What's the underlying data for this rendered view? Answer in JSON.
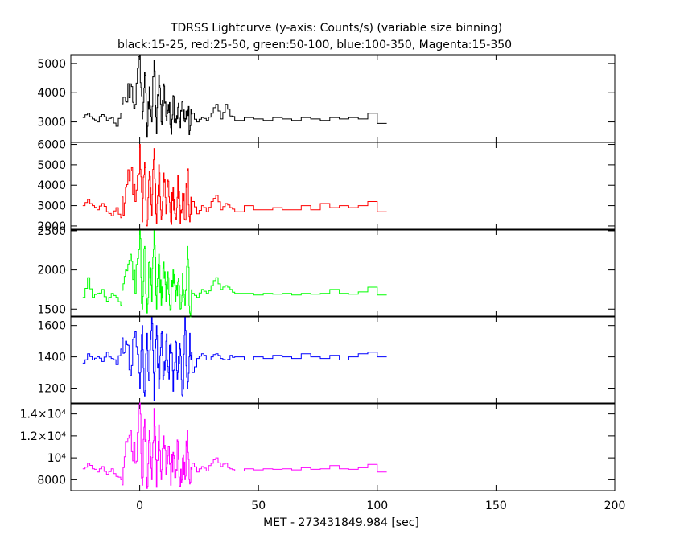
{
  "chart_data": {
    "type": "line",
    "title": "TDRSS Lightcurve (y-axis: Counts/s) (variable size binning)",
    "subtitle": "black:15-25, red:25-50, green:50-100, blue:100-350, Magenta:15-350",
    "xlabel": "MET - 273431849.984 [sec]",
    "xlim": [
      -29,
      200
    ],
    "x_ticks": [
      0,
      50,
      100,
      150,
      200
    ],
    "x_tick_labels": [
      "0",
      "50",
      "100",
      "150",
      "200"
    ],
    "grid": false,
    "panels": [
      {
        "name": "black:15-25",
        "color": "#000000",
        "ylim": [
          2300,
          5300
        ],
        "y_ticks": [
          3000,
          4000,
          5000
        ],
        "y_tick_labels": [
          "3000",
          "4000",
          "5000"
        ],
        "keypoints": [
          [
            -24,
            3150
          ],
          [
            -22,
            3300
          ],
          [
            -20,
            3100
          ],
          [
            -18,
            3000
          ],
          [
            -16,
            3250
          ],
          [
            -14,
            3050
          ],
          [
            -12,
            3150
          ],
          [
            -10,
            2850
          ],
          [
            -8,
            3300
          ],
          [
            -6,
            3700
          ],
          [
            -4,
            4300
          ],
          [
            -2,
            3600
          ],
          [
            0,
            5300
          ],
          [
            1,
            3100
          ],
          [
            2,
            4700
          ],
          [
            3,
            2500
          ],
          [
            4,
            4200
          ],
          [
            5,
            3000
          ],
          [
            6,
            5100
          ],
          [
            7,
            2600
          ],
          [
            8,
            4600
          ],
          [
            9,
            3000
          ],
          [
            10,
            4300
          ],
          [
            11,
            3200
          ],
          [
            12,
            3600
          ],
          [
            13,
            2800
          ],
          [
            14,
            3900
          ],
          [
            15,
            3100
          ],
          [
            16,
            3500
          ],
          [
            17,
            2800
          ],
          [
            18,
            3700
          ],
          [
            19,
            3000
          ],
          [
            20,
            3400
          ],
          [
            21,
            2700
          ],
          [
            22,
            3300
          ],
          [
            24,
            3000
          ],
          [
            26,
            3150
          ],
          [
            28,
            3050
          ],
          [
            30,
            3300
          ],
          [
            32,
            3600
          ],
          [
            34,
            3100
          ],
          [
            36,
            3600
          ],
          [
            38,
            3200
          ],
          [
            40,
            3050
          ],
          [
            44,
            3150
          ],
          [
            48,
            3100
          ],
          [
            52,
            3050
          ],
          [
            56,
            3150
          ],
          [
            60,
            3100
          ],
          [
            64,
            3050
          ],
          [
            68,
            3150
          ],
          [
            72,
            3100
          ],
          [
            76,
            3050
          ],
          [
            80,
            3150
          ],
          [
            84,
            3100
          ],
          [
            88,
            3150
          ],
          [
            92,
            3100
          ],
          [
            96,
            3300
          ],
          [
            100,
            2950
          ],
          [
            104,
            2950
          ]
        ]
      },
      {
        "name": "red:25-50",
        "color": "#ff0000",
        "ylim": [
          1800,
          6100
        ],
        "y_ticks": [
          2000,
          3000,
          4000,
          5000,
          6000
        ],
        "y_tick_labels": [
          "2000",
          "3000",
          "4000",
          "5000",
          "6000"
        ],
        "keypoints": [
          [
            -24,
            3000
          ],
          [
            -22,
            3300
          ],
          [
            -20,
            3000
          ],
          [
            -18,
            2800
          ],
          [
            -16,
            3100
          ],
          [
            -14,
            2700
          ],
          [
            -12,
            2500
          ],
          [
            -10,
            2900
          ],
          [
            -8,
            2400
          ],
          [
            -6,
            3900
          ],
          [
            -4,
            4700
          ],
          [
            -2,
            3200
          ],
          [
            0,
            6000
          ],
          [
            1,
            2200
          ],
          [
            2,
            5100
          ],
          [
            3,
            2000
          ],
          [
            4,
            4700
          ],
          [
            5,
            2500
          ],
          [
            6,
            5800
          ],
          [
            7,
            2100
          ],
          [
            8,
            5000
          ],
          [
            9,
            2300
          ],
          [
            10,
            4600
          ],
          [
            11,
            2600
          ],
          [
            12,
            4200
          ],
          [
            13,
            2200
          ],
          [
            14,
            3900
          ],
          [
            15,
            2400
          ],
          [
            16,
            4500
          ],
          [
            17,
            2100
          ],
          [
            18,
            3600
          ],
          [
            19,
            2300
          ],
          [
            20,
            4700
          ],
          [
            21,
            2200
          ],
          [
            22,
            3200
          ],
          [
            24,
            2600
          ],
          [
            26,
            3000
          ],
          [
            28,
            2700
          ],
          [
            30,
            3200
          ],
          [
            32,
            3500
          ],
          [
            34,
            2800
          ],
          [
            36,
            3100
          ],
          [
            38,
            2900
          ],
          [
            40,
            2700
          ],
          [
            44,
            3000
          ],
          [
            48,
            2800
          ],
          [
            52,
            2800
          ],
          [
            56,
            2900
          ],
          [
            60,
            2800
          ],
          [
            64,
            2800
          ],
          [
            68,
            3000
          ],
          [
            72,
            2800
          ],
          [
            76,
            3100
          ],
          [
            80,
            2900
          ],
          [
            84,
            3000
          ],
          [
            88,
            2900
          ],
          [
            92,
            3000
          ],
          [
            96,
            3200
          ],
          [
            100,
            2700
          ],
          [
            104,
            2700
          ]
        ]
      },
      {
        "name": "green:50-100",
        "color": "#00ff00",
        "ylim": [
          1400,
          2520
        ],
        "y_ticks": [
          1500,
          2000,
          2500
        ],
        "y_tick_labels": [
          "1500",
          "2000",
          "2500"
        ],
        "keypoints": [
          [
            -24,
            1650
          ],
          [
            -22,
            1900
          ],
          [
            -20,
            1650
          ],
          [
            -18,
            1700
          ],
          [
            -16,
            1750
          ],
          [
            -14,
            1600
          ],
          [
            -12,
            1700
          ],
          [
            -10,
            1650
          ],
          [
            -8,
            1550
          ],
          [
            -6,
            2000
          ],
          [
            -4,
            2200
          ],
          [
            -2,
            1700
          ],
          [
            0,
            2500
          ],
          [
            1,
            1500
          ],
          [
            2,
            2300
          ],
          [
            3,
            1450
          ],
          [
            4,
            2100
          ],
          [
            5,
            1600
          ],
          [
            6,
            2500
          ],
          [
            7,
            1500
          ],
          [
            8,
            2200
          ],
          [
            9,
            1550
          ],
          [
            10,
            2100
          ],
          [
            11,
            1600
          ],
          [
            12,
            1900
          ],
          [
            13,
            1500
          ],
          [
            14,
            2000
          ],
          [
            15,
            1600
          ],
          [
            16,
            1850
          ],
          [
            17,
            1500
          ],
          [
            18,
            1950
          ],
          [
            19,
            1550
          ],
          [
            20,
            2300
          ],
          [
            21,
            1450
          ],
          [
            22,
            1700
          ],
          [
            24,
            1650
          ],
          [
            26,
            1750
          ],
          [
            28,
            1700
          ],
          [
            30,
            1800
          ],
          [
            32,
            1900
          ],
          [
            34,
            1750
          ],
          [
            36,
            1800
          ],
          [
            38,
            1750
          ],
          [
            40,
            1700
          ],
          [
            44,
            1700
          ],
          [
            48,
            1680
          ],
          [
            52,
            1700
          ],
          [
            56,
            1690
          ],
          [
            60,
            1700
          ],
          [
            64,
            1680
          ],
          [
            68,
            1700
          ],
          [
            72,
            1690
          ],
          [
            76,
            1700
          ],
          [
            80,
            1750
          ],
          [
            84,
            1700
          ],
          [
            88,
            1690
          ],
          [
            92,
            1720
          ],
          [
            96,
            1780
          ],
          [
            100,
            1680
          ],
          [
            104,
            1680
          ]
        ]
      },
      {
        "name": "blue:100-350",
        "color": "#0000ff",
        "ylim": [
          1100,
          1660
        ],
        "y_ticks": [
          1200,
          1400,
          1600
        ],
        "y_tick_labels": [
          "1200",
          "1400",
          "1600"
        ],
        "keypoints": [
          [
            -24,
            1360
          ],
          [
            -22,
            1420
          ],
          [
            -20,
            1380
          ],
          [
            -18,
            1400
          ],
          [
            -16,
            1370
          ],
          [
            -14,
            1430
          ],
          [
            -12,
            1390
          ],
          [
            -10,
            1350
          ],
          [
            -8,
            1450
          ],
          [
            -6,
            1500
          ],
          [
            -4,
            1280
          ],
          [
            -2,
            1560
          ],
          [
            0,
            1200
          ],
          [
            1,
            1600
          ],
          [
            2,
            1150
          ],
          [
            3,
            1550
          ],
          [
            4,
            1250
          ],
          [
            5,
            1650
          ],
          [
            6,
            1120
          ],
          [
            7,
            1600
          ],
          [
            8,
            1200
          ],
          [
            9,
            1550
          ],
          [
            10,
            1280
          ],
          [
            11,
            1500
          ],
          [
            12,
            1300
          ],
          [
            13,
            1480
          ],
          [
            14,
            1180
          ],
          [
            15,
            1500
          ],
          [
            16,
            1300
          ],
          [
            17,
            1450
          ],
          [
            18,
            1150
          ],
          [
            19,
            1650
          ],
          [
            20,
            1200
          ],
          [
            21,
            1550
          ],
          [
            22,
            1300
          ],
          [
            24,
            1390
          ],
          [
            26,
            1420
          ],
          [
            28,
            1380
          ],
          [
            30,
            1400
          ],
          [
            32,
            1420
          ],
          [
            34,
            1390
          ],
          [
            36,
            1380
          ],
          [
            38,
            1410
          ],
          [
            40,
            1400
          ],
          [
            44,
            1380
          ],
          [
            48,
            1400
          ],
          [
            52,
            1390
          ],
          [
            56,
            1410
          ],
          [
            60,
            1400
          ],
          [
            64,
            1390
          ],
          [
            68,
            1420
          ],
          [
            72,
            1400
          ],
          [
            76,
            1390
          ],
          [
            80,
            1410
          ],
          [
            84,
            1380
          ],
          [
            88,
            1400
          ],
          [
            92,
            1420
          ],
          [
            96,
            1430
          ],
          [
            100,
            1400
          ],
          [
            104,
            1400
          ]
        ]
      },
      {
        "name": "Magenta:15-350",
        "color": "#ff00ff",
        "ylim": [
          7000,
          15000
        ],
        "y_ticks": [
          8000,
          10000,
          12000,
          14000
        ],
        "y_tick_labels": [
          "8000",
          "10⁴",
          "1.2×10⁴",
          "1.4×10⁴"
        ],
        "keypoints": [
          [
            -24,
            9000
          ],
          [
            -22,
            9500
          ],
          [
            -20,
            9000
          ],
          [
            -18,
            8700
          ],
          [
            -16,
            9200
          ],
          [
            -14,
            8500
          ],
          [
            -12,
            9000
          ],
          [
            -10,
            8300
          ],
          [
            -8,
            8000
          ],
          [
            -6,
            11500
          ],
          [
            -4,
            12500
          ],
          [
            -2,
            9500
          ],
          [
            0,
            15000
          ],
          [
            1,
            7500
          ],
          [
            2,
            13500
          ],
          [
            3,
            7200
          ],
          [
            4,
            12500
          ],
          [
            5,
            8000
          ],
          [
            6,
            14500
          ],
          [
            7,
            7300
          ],
          [
            8,
            13000
          ],
          [
            9,
            8000
          ],
          [
            10,
            12000
          ],
          [
            11,
            8500
          ],
          [
            12,
            11000
          ],
          [
            13,
            7500
          ],
          [
            14,
            10500
          ],
          [
            15,
            8200
          ],
          [
            16,
            11500
          ],
          [
            17,
            7400
          ],
          [
            18,
            10000
          ],
          [
            19,
            8000
          ],
          [
            20,
            12500
          ],
          [
            21,
            7600
          ],
          [
            22,
            9500
          ],
          [
            24,
            8700
          ],
          [
            26,
            9200
          ],
          [
            28,
            8800
          ],
          [
            30,
            9500
          ],
          [
            32,
            10000
          ],
          [
            34,
            9200
          ],
          [
            36,
            9500
          ],
          [
            38,
            9000
          ],
          [
            40,
            8800
          ],
          [
            44,
            9000
          ],
          [
            48,
            8900
          ],
          [
            52,
            9000
          ],
          [
            56,
            8950
          ],
          [
            60,
            9000
          ],
          [
            64,
            8900
          ],
          [
            68,
            9100
          ],
          [
            72,
            8950
          ],
          [
            76,
            9000
          ],
          [
            80,
            9300
          ],
          [
            84,
            9000
          ],
          [
            88,
            8950
          ],
          [
            92,
            9100
          ],
          [
            96,
            9400
          ],
          [
            100,
            8700
          ],
          [
            104,
            8700
          ]
        ]
      }
    ]
  }
}
